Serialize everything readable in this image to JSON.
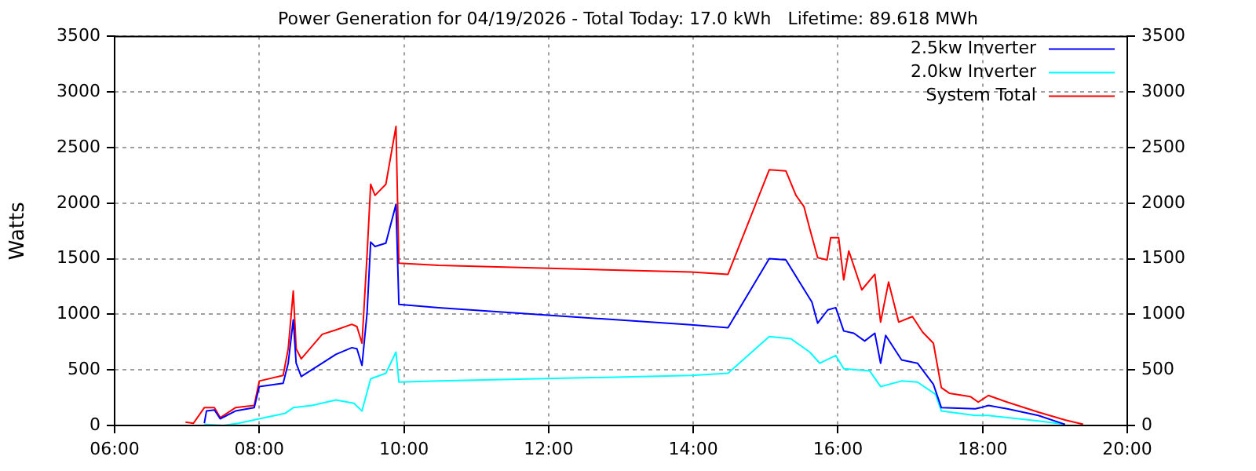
{
  "chart_data": {
    "type": "line",
    "title": "Power Generation for 04/19/2026 - Total Today: 17.0 kWh   Lifetime: 89.618 MWh",
    "ylabel": "Watts",
    "xlim": [
      6,
      20
    ],
    "xticks": [
      {
        "value": 6,
        "label": "06:00"
      },
      {
        "value": 8,
        "label": "08:00"
      },
      {
        "value": 10,
        "label": "10:00"
      },
      {
        "value": 12,
        "label": "12:00"
      },
      {
        "value": 14,
        "label": "14:00"
      },
      {
        "value": 16,
        "label": "16:00"
      },
      {
        "value": 18,
        "label": "18:00"
      },
      {
        "value": 20,
        "label": "20:00"
      }
    ],
    "ylim": [
      0,
      3500
    ],
    "yticks": [
      0,
      500,
      1000,
      1500,
      2000,
      2500,
      3000,
      3500
    ],
    "y2lim": [
      0,
      3500
    ],
    "y2ticks": [
      0,
      500,
      1000,
      1500,
      2000,
      2500,
      3000,
      3500
    ],
    "grid": true,
    "legend": "top right",
    "marker": "none",
    "line_style": "solid",
    "series": [
      {
        "name": "2.5kw Inverter",
        "color": "#0000ff",
        "x": [
          7.24,
          7.27,
          7.38,
          7.46,
          7.67,
          7.93,
          8.0,
          8.33,
          8.4,
          8.47,
          8.51,
          8.58,
          8.87,
          9.06,
          9.28,
          9.35,
          9.42,
          9.49,
          9.54,
          9.6,
          9.75,
          9.89,
          9.93,
          10.48,
          13.97,
          14.48,
          15.05,
          15.28,
          15.46,
          15.64,
          15.72,
          15.86,
          15.97,
          16.08,
          16.22,
          16.37,
          16.51,
          16.59,
          16.66,
          16.88,
          17.1,
          17.32,
          17.43,
          17.9,
          17.97,
          18.08,
          18.34,
          18.77,
          19.14
        ],
        "values": [
          20,
          130,
          140,
          60,
          130,
          160,
          350,
          380,
          560,
          950,
          560,
          440,
          560,
          640,
          700,
          690,
          540,
          1010,
          1650,
          1610,
          1640,
          1990,
          1090,
          1060,
          905,
          880,
          1500,
          1490,
          1300,
          1110,
          920,
          1040,
          1060,
          850,
          830,
          760,
          830,
          560,
          810,
          590,
          560,
          370,
          160,
          150,
          160,
          180,
          150,
          90,
          10
        ]
      },
      {
        "name": "2.0kw Inverter",
        "color": "#00ffff",
        "x": [
          7.24,
          7.5,
          7.71,
          8.0,
          8.36,
          8.47,
          8.73,
          9.06,
          9.31,
          9.42,
          9.54,
          9.75,
          9.89,
          9.93,
          10.48,
          13.97,
          14.48,
          15.05,
          15.35,
          15.61,
          15.75,
          15.97,
          16.08,
          16.44,
          16.59,
          16.88,
          17.1,
          17.35,
          17.43,
          17.9,
          18.08,
          18.77,
          19.14
        ],
        "values": [
          10,
          0,
          20,
          60,
          110,
          160,
          180,
          230,
          200,
          130,
          420,
          470,
          660,
          390,
          400,
          450,
          470,
          800,
          780,
          660,
          560,
          630,
          510,
          490,
          350,
          400,
          390,
          280,
          130,
          90,
          90,
          40,
          10
        ]
      },
      {
        "name": "System Total",
        "color": "#ff0000",
        "x": [
          6.98,
          7.09,
          7.24,
          7.38,
          7.46,
          7.67,
          7.93,
          8.0,
          8.33,
          8.4,
          8.47,
          8.51,
          8.58,
          8.87,
          9.06,
          9.28,
          9.35,
          9.42,
          9.49,
          9.54,
          9.6,
          9.75,
          9.89,
          9.93,
          10.48,
          13.97,
          14.48,
          15.05,
          15.28,
          15.42,
          15.53,
          15.61,
          15.72,
          15.85,
          15.9,
          16.01,
          16.08,
          16.15,
          16.33,
          16.51,
          16.59,
          16.7,
          16.84,
          17.03,
          17.17,
          17.32,
          17.43,
          17.54,
          17.83,
          17.94,
          18.08,
          18.34,
          18.77,
          19.14,
          19.39
        ],
        "values": [
          30,
          20,
          160,
          160,
          70,
          160,
          180,
          400,
          450,
          690,
          1210,
          690,
          600,
          820,
          860,
          910,
          890,
          740,
          1530,
          2170,
          2070,
          2170,
          2690,
          1460,
          1440,
          1380,
          1360,
          2300,
          2290,
          2070,
          1970,
          1770,
          1510,
          1490,
          1690,
          1690,
          1310,
          1570,
          1220,
          1360,
          930,
          1290,
          930,
          980,
          840,
          740,
          340,
          290,
          260,
          210,
          270,
          210,
          120,
          50,
          10
        ]
      }
    ]
  }
}
